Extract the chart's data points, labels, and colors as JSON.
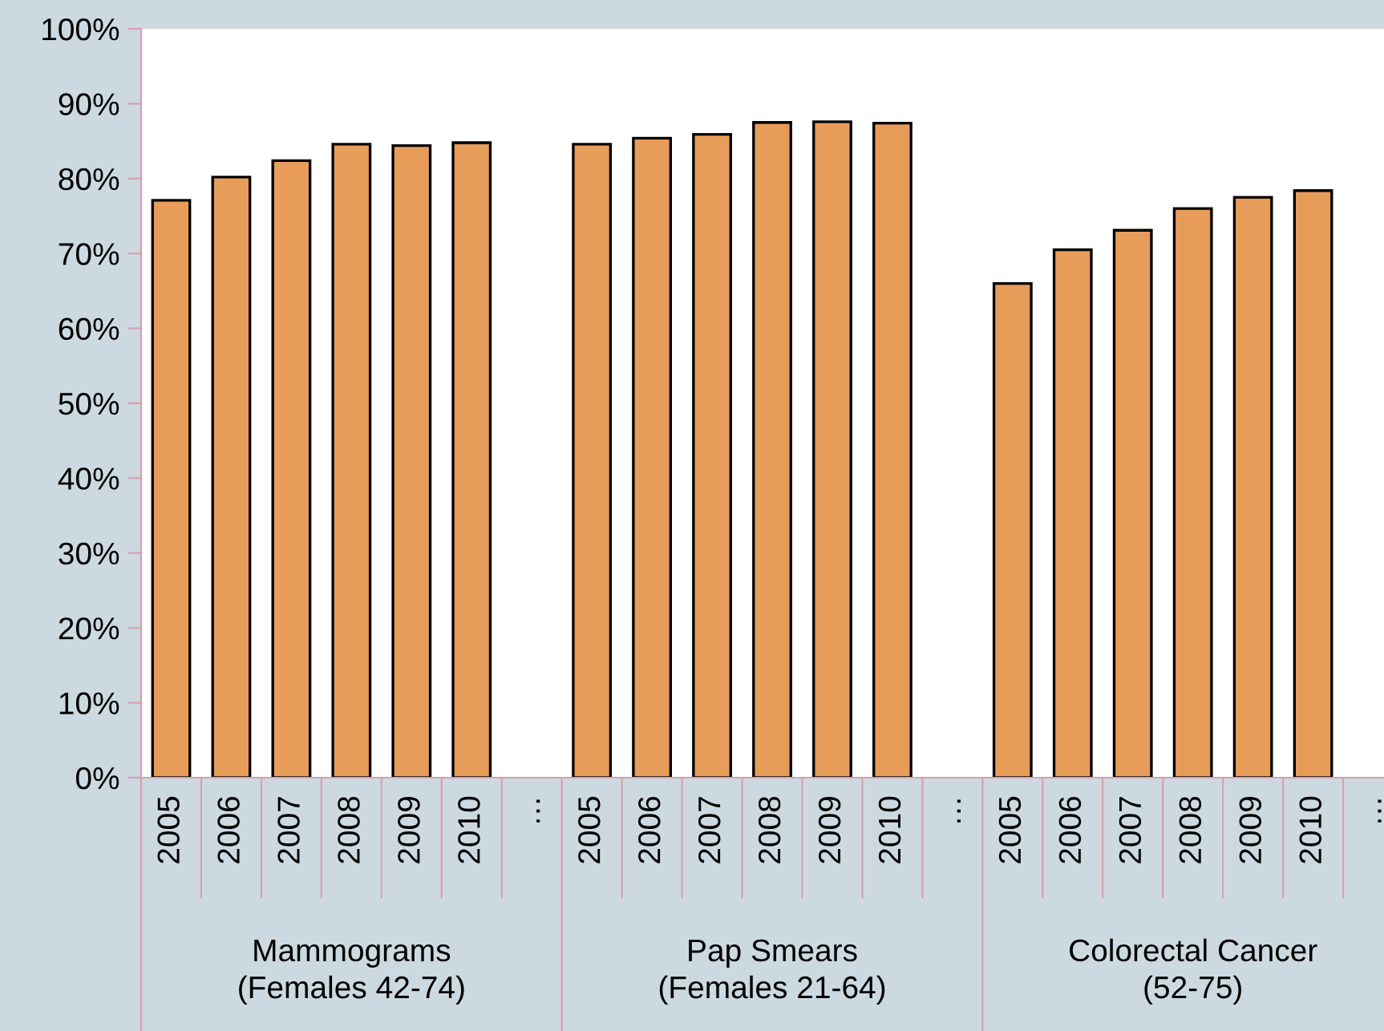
{
  "chart_data": {
    "type": "bar",
    "categories": [
      "2005",
      "2006",
      "2007",
      "2008",
      "2009",
      "2010",
      "…",
      "2005",
      "2006",
      "2007",
      "2008",
      "2009",
      "2010",
      "…",
      "2005",
      "2006",
      "2007",
      "2008",
      "2009",
      "2010",
      "…"
    ],
    "values": [
      77.1,
      80.2,
      82.4,
      84.6,
      84.4,
      84.8,
      null,
      84.6,
      85.4,
      85.9,
      87.5,
      87.6,
      87.4,
      null,
      66.0,
      70.5,
      73.1,
      76.0,
      77.5,
      78.4,
      null
    ],
    "color": "#e89c5a",
    "ylim": [
      0,
      100
    ],
    "yticks": [
      {
        "value": 0,
        "label": "0%"
      },
      {
        "value": 10,
        "label": "10%"
      },
      {
        "value": 20,
        "label": "20%"
      },
      {
        "value": 30,
        "label": "30%"
      },
      {
        "value": 40,
        "label": "40%"
      },
      {
        "value": 50,
        "label": "50%"
      },
      {
        "value": 60,
        "label": "60%"
      },
      {
        "value": 70,
        "label": "70%"
      },
      {
        "value": 80,
        "label": "80%"
      },
      {
        "value": 90,
        "label": "90%"
      },
      {
        "value": 100,
        "label": "100%"
      }
    ],
    "annotations": [
      "Mammograms\n(Females 42-74)",
      "Pap Smears\n(Females 21-64)",
      "Colorectal Cancer\n(52-75)"
    ],
    "grid": false,
    "legend": false
  }
}
